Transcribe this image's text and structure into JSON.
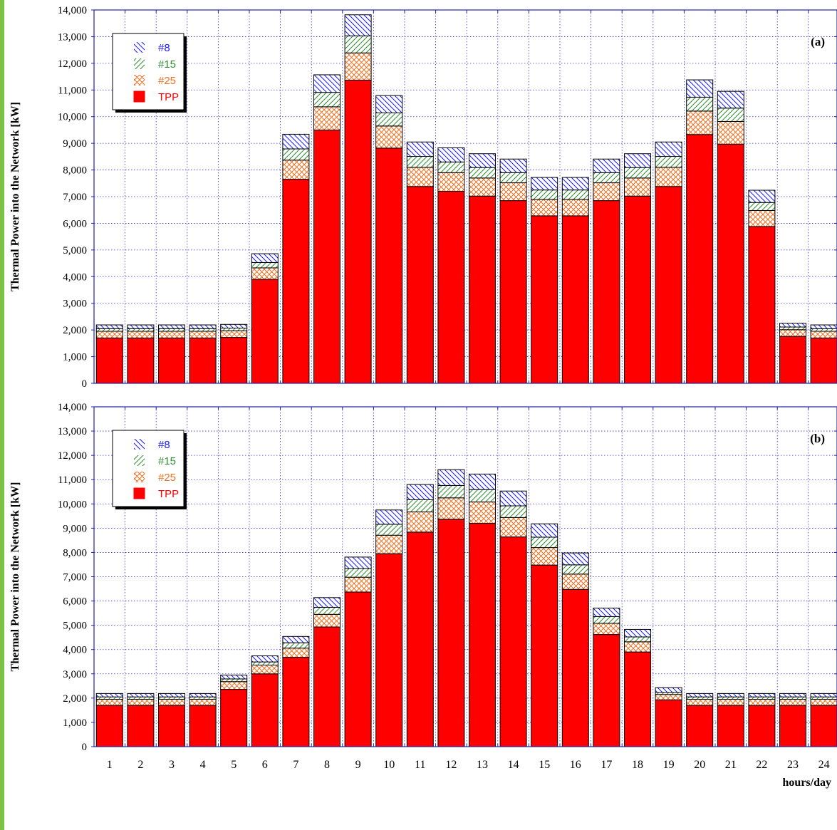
{
  "chart_data": [
    {
      "type": "bar",
      "stacked": true,
      "panel_label": "(a)",
      "ylabel": "Thermal Power into the Network [kW]",
      "xlabel": "",
      "ylim": [
        0,
        14000
      ],
      "yticks": [
        "0",
        "1,000",
        "2,000",
        "3,000",
        "4,000",
        "5,000",
        "6,000",
        "7,000",
        "8,000",
        "9,000",
        "10,000",
        "11,000",
        "12,000",
        "13,000",
        "14,000"
      ],
      "grid": true,
      "legend_position": "top-left",
      "categories": [
        "1",
        "2",
        "3",
        "4",
        "5",
        "6",
        "7",
        "8",
        "9",
        "10",
        "11",
        "12",
        "13",
        "14",
        "15",
        "16",
        "17",
        "18",
        "19",
        "20",
        "21",
        "22",
        "23",
        "24"
      ],
      "series": [
        {
          "name": "TPP",
          "color": "#ff0000",
          "pattern": "solid",
          "values": [
            1700,
            1700,
            1700,
            1700,
            1720,
            3900,
            7650,
            9500,
            11370,
            8820,
            7380,
            7200,
            7020,
            6850,
            6280,
            6280,
            6850,
            7020,
            7380,
            9330,
            8970,
            5880,
            1760,
            1700
          ]
        },
        {
          "name": "#25",
          "color": "#f07020",
          "pattern": "crosshatch",
          "values": [
            250,
            250,
            250,
            250,
            250,
            430,
            720,
            870,
            1020,
            830,
            720,
            700,
            680,
            670,
            620,
            620,
            670,
            680,
            720,
            880,
            850,
            600,
            250,
            250
          ]
        },
        {
          "name": "#15",
          "color": "#2e8b2e",
          "pattern": "diagonal",
          "values": [
            100,
            100,
            100,
            100,
            100,
            200,
            420,
            540,
            640,
            490,
            410,
            400,
            390,
            380,
            350,
            350,
            380,
            390,
            410,
            520,
            500,
            300,
            100,
            100
          ]
        },
        {
          "name": "#8",
          "color": "#1a1aff",
          "pattern": "diagonal-reverse",
          "values": [
            140,
            140,
            140,
            140,
            140,
            330,
            550,
            660,
            790,
            650,
            540,
            530,
            520,
            510,
            470,
            470,
            510,
            520,
            540,
            650,
            630,
            460,
            140,
            140
          ]
        }
      ]
    },
    {
      "type": "bar",
      "stacked": true,
      "panel_label": "(b)",
      "ylabel": "Thermal Power into the Network [kW]",
      "xlabel": "hours/day",
      "ylim": [
        0,
        14000
      ],
      "yticks": [
        "0",
        "1,000",
        "2,000",
        "3,000",
        "4,000",
        "5,000",
        "6,000",
        "7,000",
        "8,000",
        "9,000",
        "10,000",
        "11,000",
        "12,000",
        "13,000",
        "14,000"
      ],
      "grid": true,
      "legend_position": "top-left",
      "categories": [
        "1",
        "2",
        "3",
        "4",
        "5",
        "6",
        "7",
        "8",
        "9",
        "10",
        "11",
        "12",
        "13",
        "14",
        "15",
        "16",
        "17",
        "18",
        "19",
        "20",
        "21",
        "22",
        "23",
        "24"
      ],
      "series": [
        {
          "name": "TPP",
          "color": "#ff0000",
          "pattern": "solid",
          "values": [
            1700,
            1700,
            1700,
            1700,
            2360,
            3000,
            3680,
            4930,
            6370,
            7950,
            8840,
            9370,
            9200,
            8640,
            7480,
            6480,
            4620,
            3900,
            1930,
            1700,
            1700,
            1700,
            1700,
            1700
          ]
        },
        {
          "name": "#25",
          "color": "#f07020",
          "pattern": "crosshatch",
          "values": [
            250,
            250,
            250,
            250,
            320,
            360,
            380,
            520,
            610,
            760,
            830,
            880,
            880,
            800,
            720,
            630,
            460,
            420,
            220,
            250,
            250,
            250,
            250,
            250
          ]
        },
        {
          "name": "#15",
          "color": "#2e8b2e",
          "pattern": "diagonal",
          "values": [
            100,
            100,
            100,
            100,
            110,
            130,
            220,
            290,
            360,
            450,
            500,
            510,
            510,
            480,
            430,
            380,
            280,
            200,
            80,
            100,
            100,
            100,
            100,
            100
          ]
        },
        {
          "name": "#8",
          "color": "#1a1aff",
          "pattern": "diagonal-reverse",
          "values": [
            140,
            140,
            140,
            140,
            160,
            250,
            260,
            400,
            470,
            590,
            630,
            650,
            640,
            610,
            550,
            490,
            350,
            310,
            200,
            140,
            140,
            140,
            140,
            140
          ]
        }
      ]
    }
  ]
}
